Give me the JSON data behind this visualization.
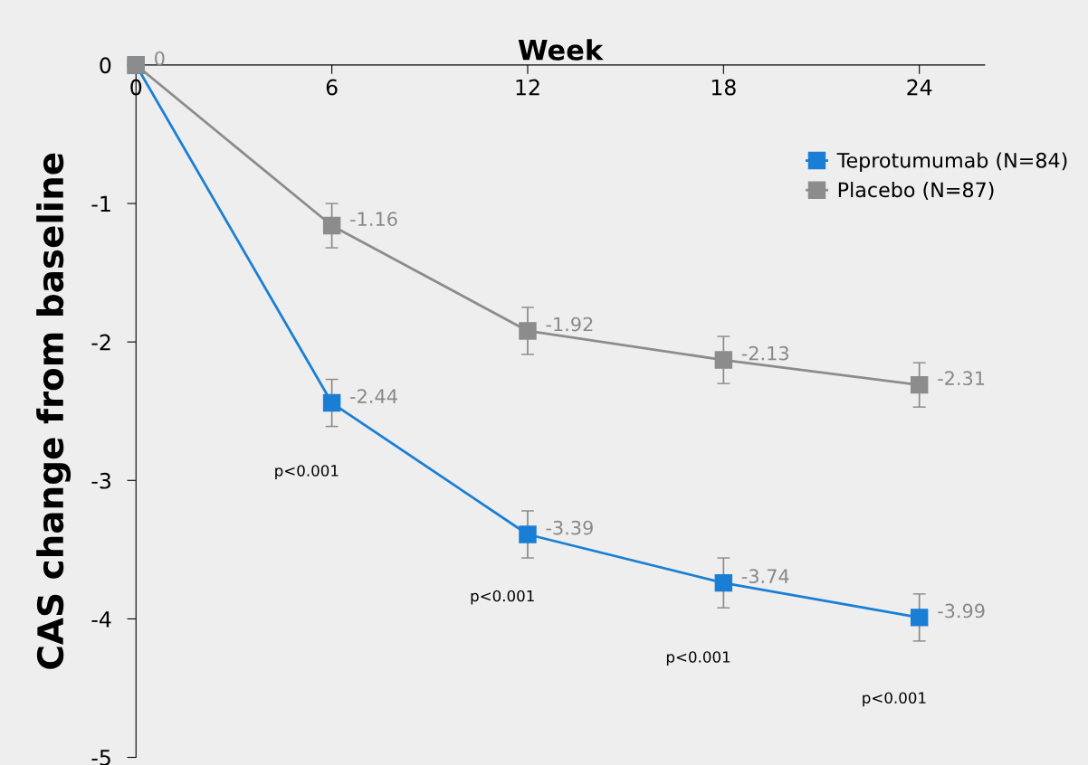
{
  "chart_data": {
    "type": "line",
    "xlabel": "Week",
    "ylabel": "CAS change from baseline",
    "x": [
      0,
      6,
      12,
      18,
      24
    ],
    "series": [
      {
        "name": "Teprotumumab (N=84)",
        "color": "#1a7fd4",
        "values": [
          0,
          -2.44,
          -3.39,
          -3.74,
          -3.99
        ],
        "errors": [
          null,
          0.17,
          0.17,
          0.18,
          0.17
        ],
        "value_labels": [
          null,
          "-2.44",
          "-3.39",
          "-3.74",
          "-3.99"
        ]
      },
      {
        "name": "Placebo (N=87)",
        "color": "#8c8c8c",
        "values": [
          0,
          -1.16,
          -1.92,
          -2.13,
          -2.31
        ],
        "errors": [
          null,
          0.16,
          0.17,
          0.17,
          0.16
        ],
        "value_labels": [
          "0",
          "-1.16",
          "-1.92",
          "-2.13",
          "-2.31"
        ]
      }
    ],
    "annotations": [
      "p<0.001",
      "p<0.001",
      "p<0.001",
      "p<0.001"
    ],
    "xlim": [
      0,
      26
    ],
    "xticks": [
      0,
      6,
      12,
      18,
      24
    ],
    "ylim": [
      -5,
      0
    ],
    "yticks": [
      0,
      -1,
      -2,
      -3,
      -4,
      -5
    ],
    "marker": "square",
    "legend": "top right",
    "grid": false
  }
}
